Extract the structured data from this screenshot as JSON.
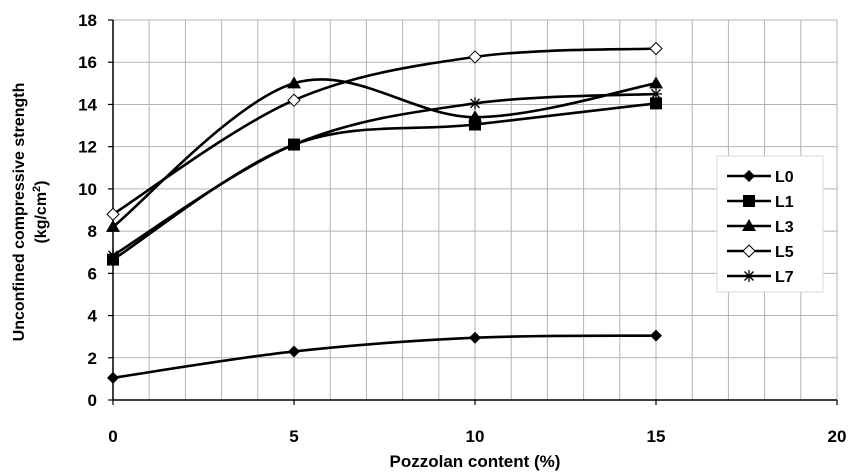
{
  "chart_data": {
    "type": "line",
    "xlabel": "Pozzolan content (%)",
    "ylabel_line1": "Unconfined compressive strength",
    "ylabel_line2_main": "(kg/cm",
    "ylabel_line2_sup": "2",
    "ylabel_line2_end": ")",
    "xlim": [
      0,
      20
    ],
    "ylim": [
      0,
      18
    ],
    "x_ticks": [
      "0",
      "5",
      "10",
      "15",
      "20"
    ],
    "y_ticks": [
      "0",
      "2",
      "4",
      "6",
      "8",
      "10",
      "12",
      "14",
      "16",
      "18"
    ],
    "grid": true,
    "legend_position": "right",
    "x": [
      0,
      5,
      10,
      15
    ],
    "series": [
      {
        "name": "L0",
        "marker": "diamond-filled",
        "values": [
          1.05,
          2.3,
          2.95,
          3.05
        ]
      },
      {
        "name": "L1",
        "marker": "square-filled",
        "values": [
          6.65,
          12.1,
          13.05,
          14.05
        ]
      },
      {
        "name": "L3",
        "marker": "triangle-filled",
        "values": [
          8.2,
          15.0,
          13.4,
          15.0
        ]
      },
      {
        "name": "L5",
        "marker": "diamond-open",
        "values": [
          8.8,
          14.2,
          16.25,
          16.65
        ]
      },
      {
        "name": "L7",
        "marker": "asterisk",
        "values": [
          6.85,
          12.1,
          14.05,
          14.5
        ]
      }
    ],
    "colors": {
      "line": "#000000",
      "grid": "#b3b3b3",
      "legend_border": "#d9d9d9"
    }
  }
}
